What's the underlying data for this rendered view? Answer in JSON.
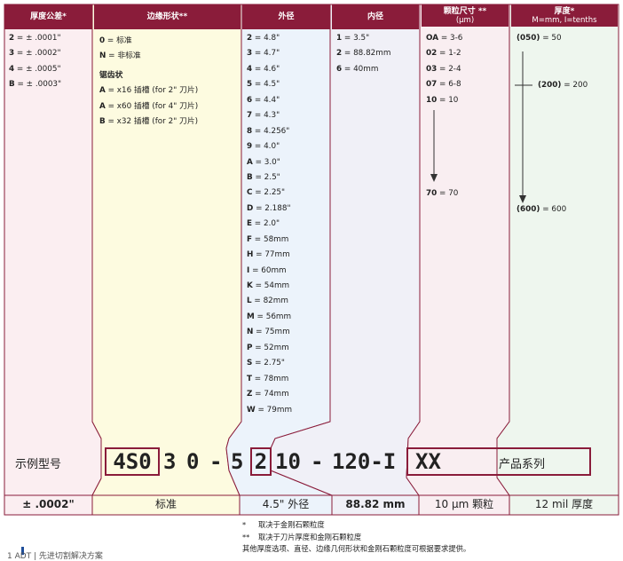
{
  "colors": {
    "header": "#8a1c3a",
    "border": "#8a1c3a",
    "bg": [
      "#fbeef1",
      "#fdfbe0",
      "#ecf3fb",
      "#f0f0f7",
      "#f9eef1",
      "#eef6ee"
    ]
  },
  "headers": {
    "tolerance": "厚度公差*",
    "edge": "边缘形状**",
    "od": "外径",
    "id": "内径",
    "grit_title": "颗粒尺寸 **",
    "grit_sub": "(μm)",
    "thick_title": "厚度*",
    "thick_sub": "M=mm, I=tenths"
  },
  "tolerance": [
    {
      "code": "2",
      "desc": " = ± .0001\""
    },
    {
      "code": "3",
      "desc": " = ± .0002\""
    },
    {
      "code": "4",
      "desc": " = ± .0005\""
    },
    {
      "code": "B",
      "desc": " = ± .0003\""
    }
  ],
  "edge": {
    "items": [
      {
        "code": "0",
        "desc": " = 标准"
      },
      {
        "code": "N",
        "desc": " = 非标准"
      }
    ],
    "serrated_title": "锯齿状",
    "serrated": [
      {
        "code": "A",
        "desc": " = x16 插槽 (for 2\" 刀片)"
      },
      {
        "code": "A",
        "desc": " = x60 插槽 (for 4\" 刀片)"
      },
      {
        "code": "B",
        "desc": " = x32 插槽 (for 2\" 刀片)"
      }
    ]
  },
  "od": [
    {
      "code": "2",
      "desc": " = 4.8\""
    },
    {
      "code": "3",
      "desc": " = 4.7\""
    },
    {
      "code": "4",
      "desc": " = 4.6\""
    },
    {
      "code": "5",
      "desc": " = 4.5\""
    },
    {
      "code": "6",
      "desc": " = 4.4\""
    },
    {
      "code": "7",
      "desc": " = 4.3\""
    },
    {
      "code": "8",
      "desc": " = 4.256\""
    },
    {
      "code": "9",
      "desc": " = 4.0\""
    },
    {
      "code": "A",
      "desc": " = 3.0\""
    },
    {
      "code": "B",
      "desc": " = 2.5\""
    },
    {
      "code": "C",
      "desc": " = 2.25\""
    },
    {
      "code": "D",
      "desc": " = 2.188\""
    },
    {
      "code": "E",
      "desc": " = 2.0\""
    },
    {
      "code": "F",
      "desc": " = 58mm"
    },
    {
      "code": "H",
      "desc": " = 77mm"
    },
    {
      "code": "I",
      "desc": " = 60mm"
    },
    {
      "code": "K",
      "desc": " = 54mm"
    },
    {
      "code": "L",
      "desc": " = 82mm"
    },
    {
      "code": "M",
      "desc": " = 56mm"
    },
    {
      "code": "N",
      "desc": " = 75mm"
    },
    {
      "code": "P",
      "desc": " = 52mm"
    },
    {
      "code": "S",
      "desc": " = 2.75\""
    },
    {
      "code": "T",
      "desc": " = 78mm"
    },
    {
      "code": "Z",
      "desc": " = 74mm"
    },
    {
      "code": "W",
      "desc": " = 79mm"
    }
  ],
  "id": [
    {
      "code": "1",
      "desc": " = 3.5\""
    },
    {
      "code": "2",
      "desc": " = 88.82mm"
    },
    {
      "code": "6",
      "desc": " = 40mm"
    }
  ],
  "grit": [
    {
      "code": "OA",
      "desc": " = 3-6"
    },
    {
      "code": "02",
      "desc": " = 1-2"
    },
    {
      "code": "03",
      "desc": " = 2-4"
    },
    {
      "code": "07",
      "desc": " = 6-8"
    },
    {
      "code": "10",
      "desc": " = 10"
    }
  ],
  "grit_end": {
    "code": "70",
    "desc": " = 70"
  },
  "thickness": [
    {
      "code": "(050)",
      "desc": " = 50"
    },
    {
      "code": "(200)",
      "desc": " = 200"
    },
    {
      "code": "(600)",
      "desc": " = 600"
    }
  ],
  "example": {
    "label": "示例型号",
    "seg_4s0": "4S0",
    "seg_3": "3",
    "seg_0": "0",
    "dash1": "-",
    "seg_5": "5",
    "seg_2": "2",
    "seg_10": "10",
    "dash2": "-",
    "seg_120": "120-I",
    "seg_xx": "XX",
    "series_label": "产品系列"
  },
  "bottom": {
    "tol": "± .0002\"",
    "edge": "标准",
    "od": "4.5\" 外径",
    "id": "88.82 mm",
    "grit": "10 μm 颗粒",
    "thick": "12 mil 厚度"
  },
  "notes": {
    "n1_mark": "*",
    "n1": "取决于金刚石颗粒度",
    "n2_mark": "**",
    "n2": "取决于刀片厚度和金刚石颗粒度",
    "n3": "其他厚度选项、直径、边缘几何形状和金刚石颗粒度可根据要求提供。"
  },
  "footer": "1  ADT | 先进切割解决方案"
}
